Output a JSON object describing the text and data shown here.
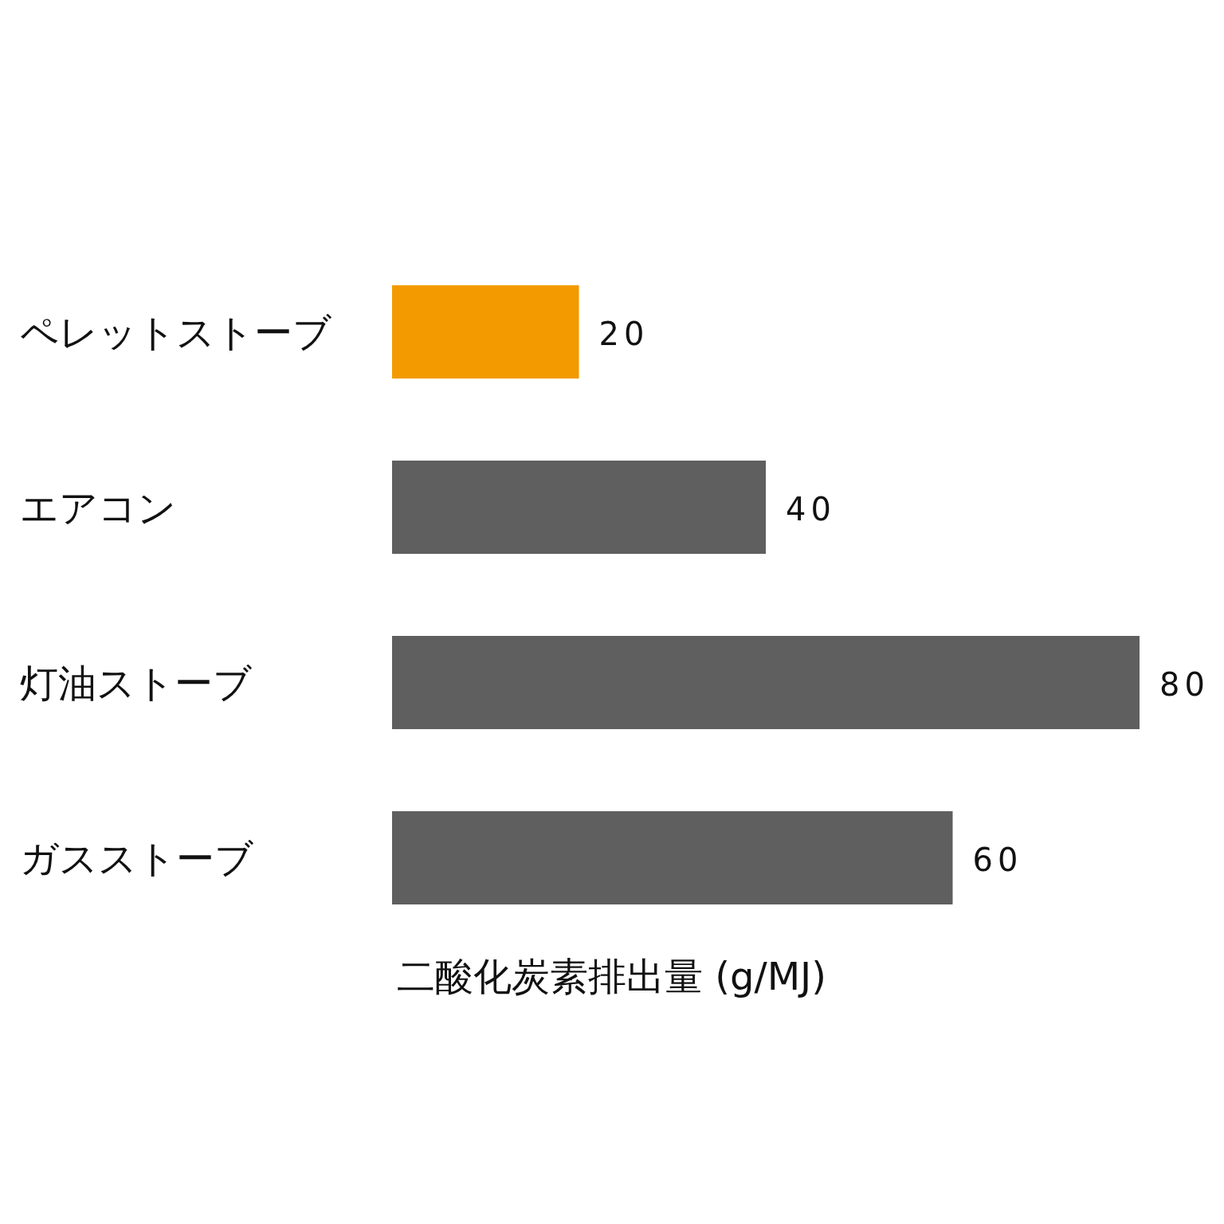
{
  "chart_data": {
    "type": "bar",
    "orientation": "horizontal",
    "categories": [
      "ペレットストーブ",
      "エアコン",
      "灯油ストーブ",
      "ガスストーブ"
    ],
    "values": [
      20,
      40,
      80,
      60
    ],
    "colors": [
      "#f29a00",
      "#5f5f5f",
      "#5f5f5f",
      "#5f5f5f"
    ],
    "data_labels": true,
    "xlabel": "二酸化炭素排出量 (g/MJ)"
  }
}
